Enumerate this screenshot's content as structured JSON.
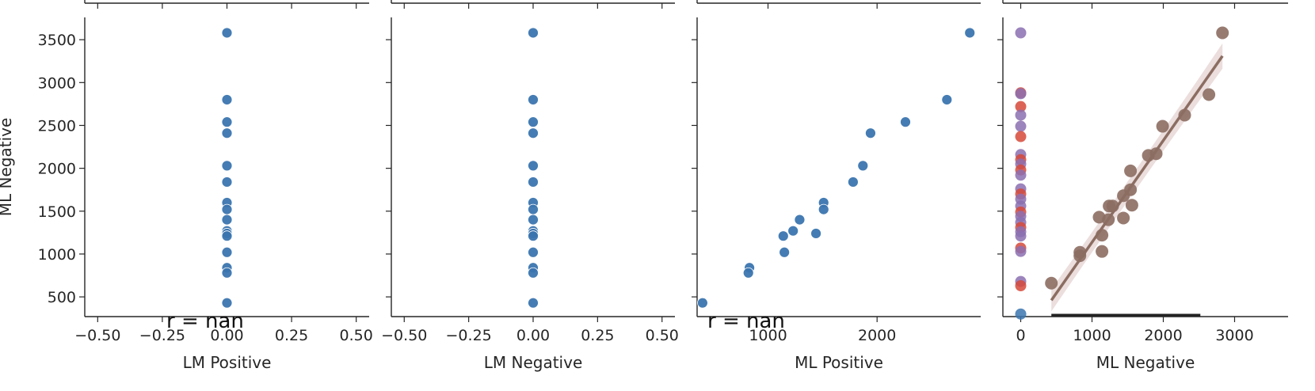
{
  "chart_data": {
    "type": "scatter",
    "y_axis": {
      "label": "ML Negative",
      "ylim": [
        270,
        3760
      ],
      "ticks": [
        500,
        1000,
        1500,
        2000,
        2500,
        3000,
        3500
      ],
      "tick_labels": [
        "500",
        "1000",
        "1500",
        "2000",
        "2500",
        "3000",
        "3500"
      ]
    },
    "ml_negative_values": [
      3580,
      2800,
      2540,
      2410,
      2030,
      1840,
      1600,
      1520,
      1400,
      1270,
      1240,
      1210,
      1020,
      840,
      780,
      430
    ],
    "panels": [
      {
        "xlabel": "LM Positive",
        "xlim": [
          -0.55,
          0.55
        ],
        "xticks": [
          -0.5,
          -0.25,
          0,
          0.25,
          0.5
        ],
        "xtick_labels": [
          "−0.50",
          "−0.25",
          "0.00",
          "0.25",
          "0.50"
        ],
        "x_values": [
          0,
          0,
          0,
          0,
          0,
          0,
          0,
          0,
          0,
          0,
          0,
          0,
          0,
          0,
          0,
          0
        ],
        "annotation": "r = nan"
      },
      {
        "xlabel": "LM Negative",
        "xlim": [
          -0.55,
          0.55
        ],
        "xticks": [
          -0.5,
          -0.25,
          0,
          0.25,
          0.5
        ],
        "xtick_labels": [
          "−0.50",
          "−0.25",
          "0.00",
          "0.25",
          "0.50"
        ],
        "x_values": [
          0,
          0,
          0,
          0,
          0,
          0,
          0,
          0,
          0,
          0,
          0,
          0,
          0,
          0,
          0,
          0
        ]
      },
      {
        "xlabel": "ML Positive",
        "xlim": [
          350,
          2950
        ],
        "xticks": [
          1000,
          2000
        ],
        "xtick_labels": [
          "1000",
          "2000"
        ],
        "x_values": [
          2850,
          2640,
          2260,
          1940,
          1870,
          1780,
          1510,
          1510,
          1290,
          1230,
          1440,
          1140,
          1150,
          830,
          820,
          400
        ],
        "annotation": "r = nan"
      },
      {
        "xlabel": "ML Negative",
        "xlim": [
          -250,
          3750
        ],
        "xticks": [
          0,
          1000,
          2000,
          3000
        ],
        "xtick_labels": [
          "0",
          "1000",
          "2000",
          "3000"
        ],
        "regression": {
          "points": [
            {
              "x": 2830,
              "y": 3580
            },
            {
              "x": 2640,
              "y": 2860
            },
            {
              "x": 2300,
              "y": 2620
            },
            {
              "x": 1990,
              "y": 2490
            },
            {
              "x": 1900,
              "y": 2170
            },
            {
              "x": 1790,
              "y": 2150
            },
            {
              "x": 1540,
              "y": 1970
            },
            {
              "x": 1540,
              "y": 1750
            },
            {
              "x": 1440,
              "y": 1680
            },
            {
              "x": 1440,
              "y": 1420
            },
            {
              "x": 1560,
              "y": 1570
            },
            {
              "x": 1290,
              "y": 1560
            },
            {
              "x": 1240,
              "y": 1560
            },
            {
              "x": 1100,
              "y": 1430
            },
            {
              "x": 1230,
              "y": 1400
            },
            {
              "x": 1140,
              "y": 1220
            },
            {
              "x": 1140,
              "y": 1030
            },
            {
              "x": 830,
              "y": 1020
            },
            {
              "x": 830,
              "y": 980
            },
            {
              "x": 430,
              "y": 660
            }
          ],
          "line": {
            "x": [
              430,
              2830
            ],
            "y": [
              460,
              3310
            ]
          }
        },
        "zero_strip": {
          "x": 0,
          "points": [
            {
              "y": 3580,
              "series": "purple"
            },
            {
              "y": 2880,
              "series": "red"
            },
            {
              "y": 2870,
              "series": "purple"
            },
            {
              "y": 2720,
              "series": "red"
            },
            {
              "y": 2620,
              "series": "purple"
            },
            {
              "y": 2490,
              "series": "purple"
            },
            {
              "y": 2370,
              "series": "red"
            },
            {
              "y": 2160,
              "series": "purple"
            },
            {
              "y": 2100,
              "series": "red"
            },
            {
              "y": 2050,
              "series": "purple"
            },
            {
              "y": 1980,
              "series": "red"
            },
            {
              "y": 1920,
              "series": "purple"
            },
            {
              "y": 1760,
              "series": "purple"
            },
            {
              "y": 1700,
              "series": "red"
            },
            {
              "y": 1640,
              "series": "purple"
            },
            {
              "y": 1560,
              "series": "purple"
            },
            {
              "y": 1490,
              "series": "red"
            },
            {
              "y": 1440,
              "series": "purple"
            },
            {
              "y": 1370,
              "series": "purple"
            },
            {
              "y": 1310,
              "series": "red"
            },
            {
              "y": 1260,
              "series": "purple"
            },
            {
              "y": 1210,
              "series": "purple"
            },
            {
              "y": 1070,
              "series": "red"
            },
            {
              "y": 1030,
              "series": "purple"
            },
            {
              "y": 680,
              "series": "purple"
            },
            {
              "y": 630,
              "series": "red"
            },
            {
              "y": 300,
              "series": "blue"
            }
          ]
        }
      }
    ],
    "colors": {
      "blue": "#3b75af",
      "brown": "#8c6d62",
      "red": "#d6493a",
      "purple": "#8b6fb0",
      "band": "#e6d6d4",
      "axis": "#262626"
    }
  }
}
